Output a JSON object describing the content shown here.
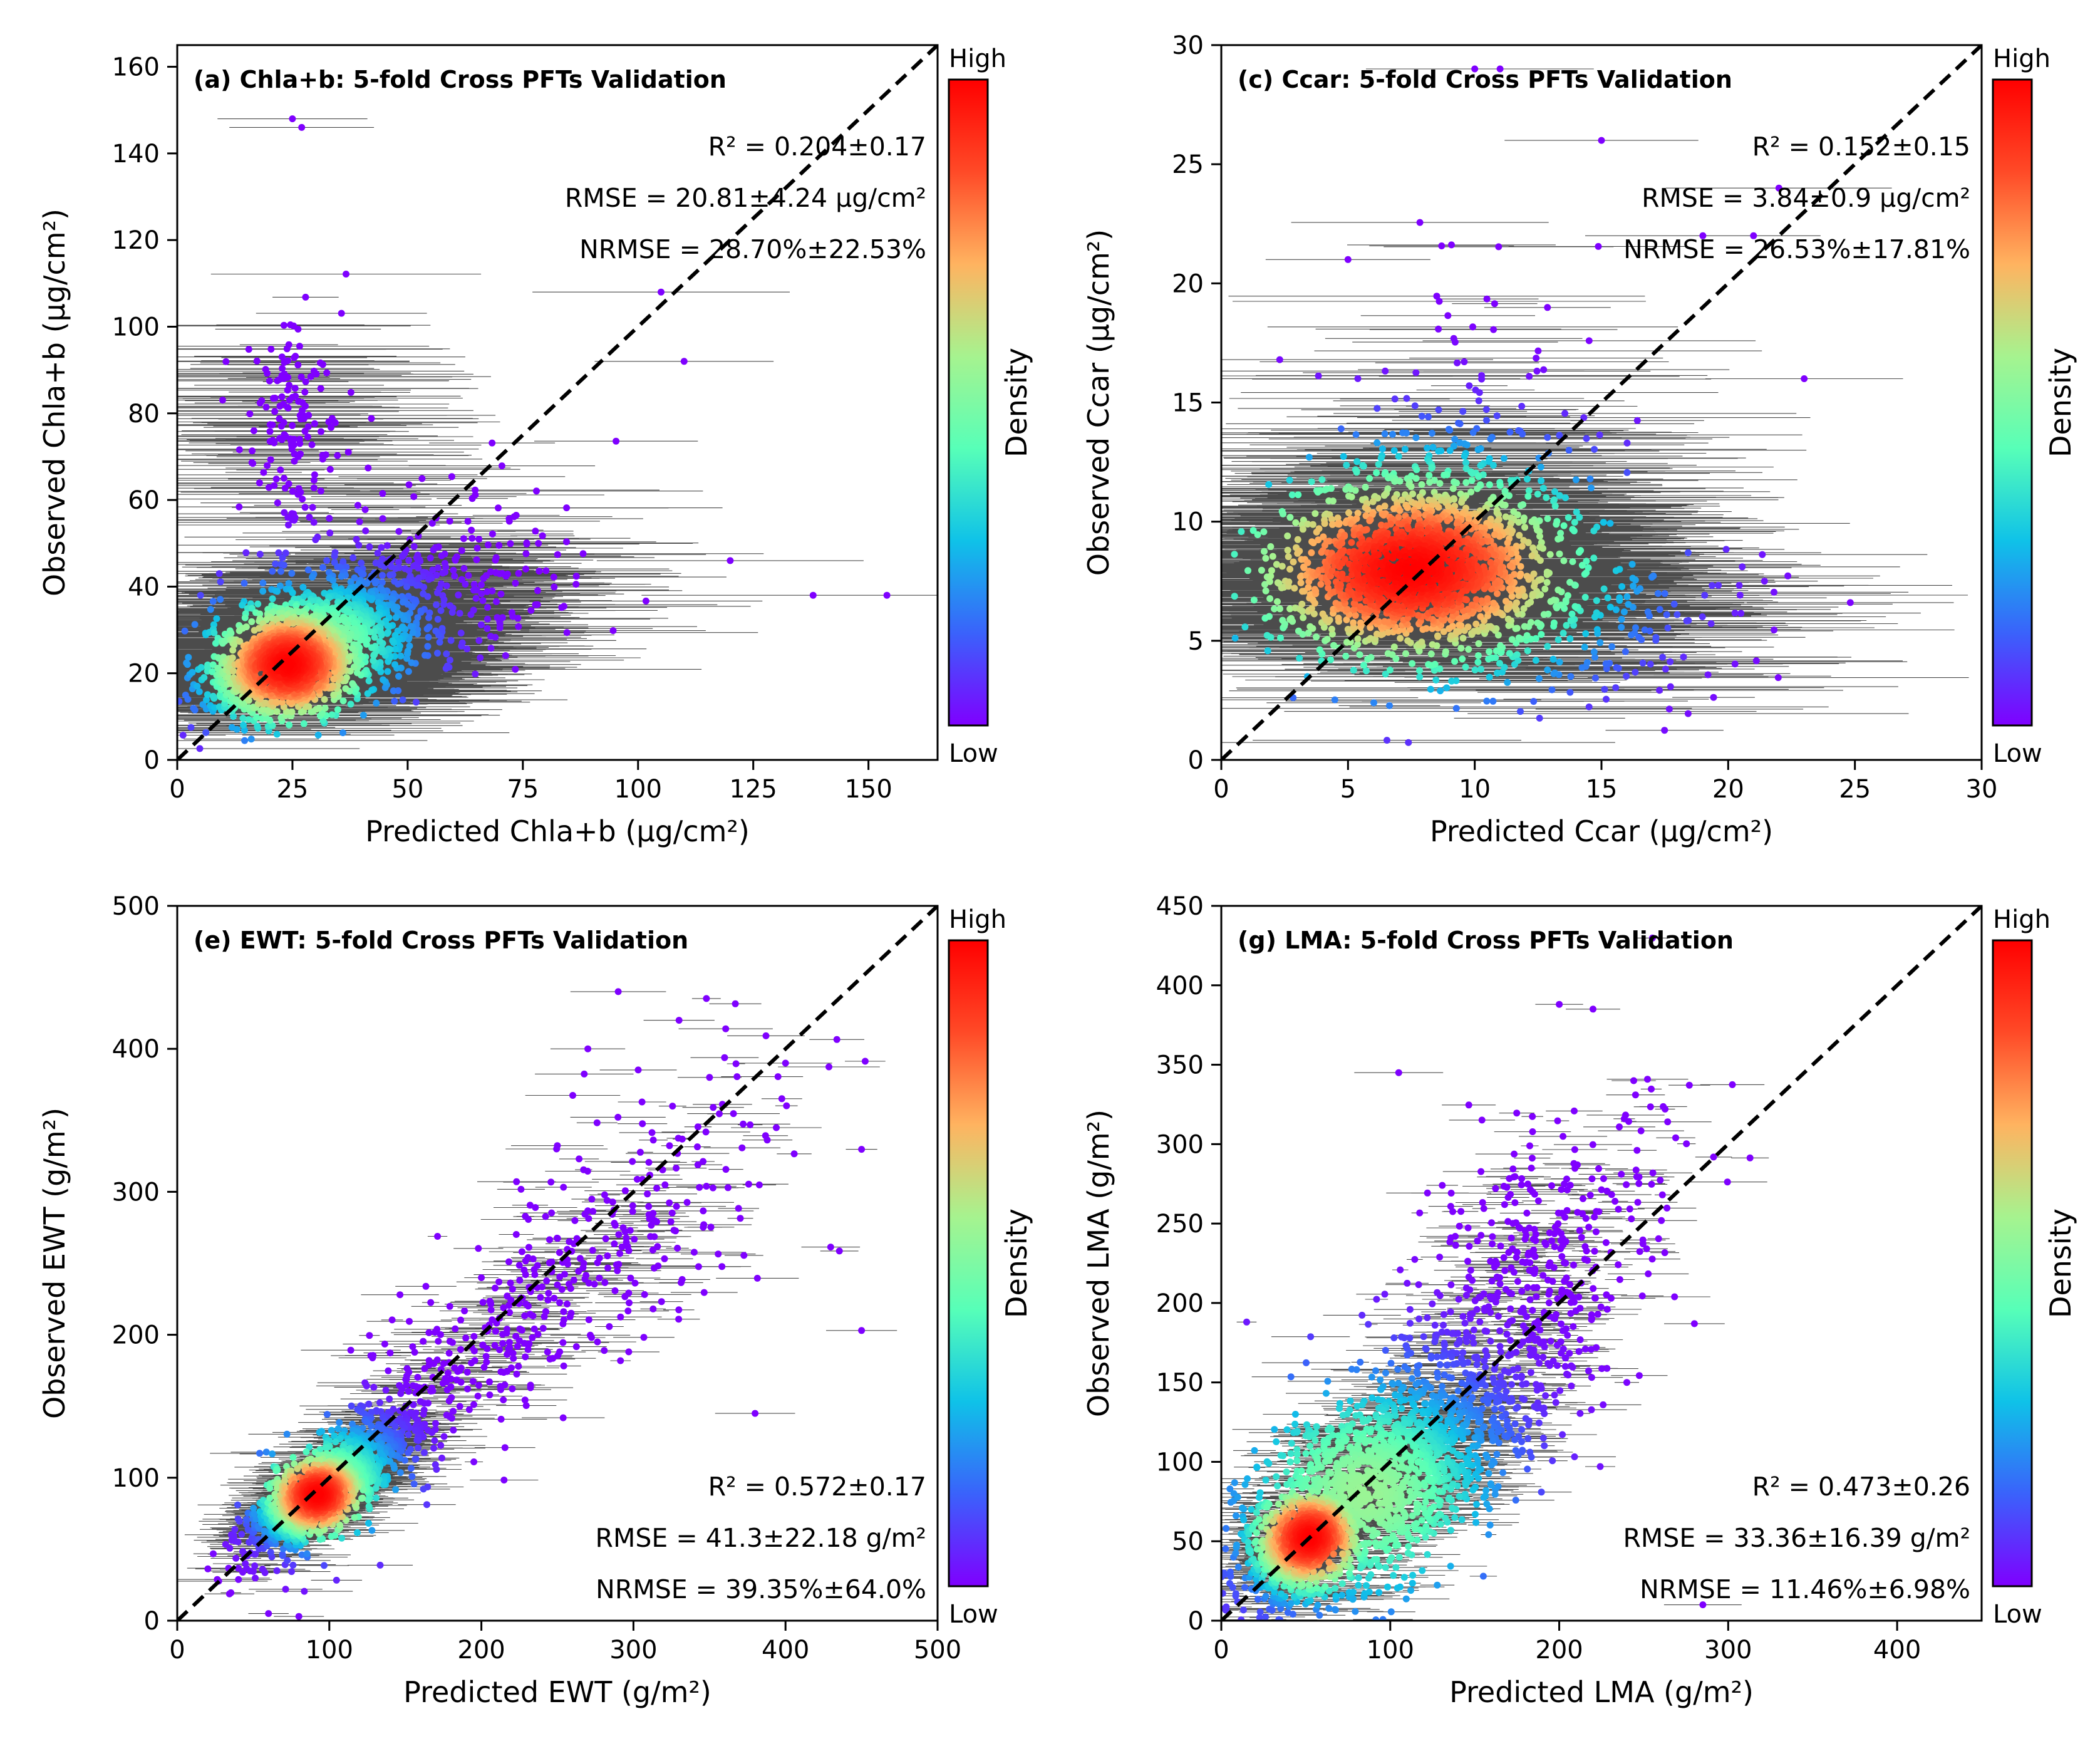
{
  "chart_data": [
    {
      "type": "scatter",
      "title": "(a) Chla+b: 5-fold Cross PFTs Validation",
      "xlabel": "Predicted Chla+b (μg/cm²)",
      "ylabel": "Observed Chla+b (μg/cm²)",
      "xlim": [
        0,
        165
      ],
      "ylim": [
        0,
        165
      ],
      "xticks": [
        0,
        25,
        50,
        75,
        100,
        125,
        150
      ],
      "yticks": [
        0,
        20,
        40,
        60,
        80,
        100,
        120,
        140,
        160
      ],
      "stats": [
        "R² = 0.204±0.17",
        "RMSE = 20.81±4.24 μg/cm²",
        "NRMSE = 28.70%±22.53%"
      ],
      "stats_position": "top-right",
      "one_to_one_line": true,
      "colorbar": {
        "label": "Density",
        "high": "High",
        "low": "Low"
      },
      "density_center": [
        24,
        22
      ],
      "cloud": [
        {
          "cx": 30,
          "cy": 27,
          "sx": 13,
          "sy": 9,
          "rho": 0.55,
          "n": 1300
        },
        {
          "cx": 24,
          "cy": 22,
          "sx": 6,
          "sy": 5,
          "rho": 0.3,
          "n": 700
        },
        {
          "cx": 25,
          "cy": 78,
          "sx": 5,
          "sy": 15,
          "rho": 0.0,
          "n": 160
        },
        {
          "cx": 55,
          "cy": 38,
          "sx": 20,
          "sy": 12,
          "rho": 0.3,
          "n": 250
        }
      ],
      "error_bar_half_width": 22,
      "outliers": [
        [
          25,
          148
        ],
        [
          27,
          146
        ],
        [
          138,
          38
        ],
        [
          120,
          46
        ],
        [
          110,
          92
        ],
        [
          154,
          38
        ],
        [
          105,
          108
        ]
      ]
    },
    {
      "type": "scatter",
      "title": "(c) Ccar: 5-fold Cross PFTs Validation",
      "xlabel": "Predicted Ccar (μg/cm²)",
      "ylabel": "Observed Ccar (μg/cm²)",
      "xlim": [
        0,
        30
      ],
      "ylim": [
        0,
        30
      ],
      "xticks": [
        0,
        5,
        10,
        15,
        20,
        25,
        30
      ],
      "yticks": [
        0,
        5,
        10,
        15,
        20,
        25,
        30
      ],
      "stats": [
        "R² = 0.152±0.15",
        "RMSE = 3.84±0.9 μg/cm²",
        "NRMSE = 26.53%±17.81%"
      ],
      "stats_position": "top-right",
      "one_to_one_line": true,
      "colorbar": {
        "label": "Density",
        "high": "High",
        "low": "Low"
      },
      "density_center": [
        7.5,
        8
      ],
      "cloud": [
        {
          "cx": 7.5,
          "cy": 7.8,
          "sx": 2.6,
          "sy": 1.6,
          "rho": 0.15,
          "n": 1500
        },
        {
          "cx": 8,
          "cy": 11,
          "sx": 2.5,
          "sy": 1.5,
          "rho": 0.0,
          "n": 250
        },
        {
          "cx": 13,
          "cy": 6,
          "sx": 4,
          "sy": 1.8,
          "rho": 0.0,
          "n": 300
        },
        {
          "cx": 10,
          "cy": 14,
          "sx": 3,
          "sy": 3,
          "rho": 0.0,
          "n": 90
        }
      ],
      "error_bar_half_width": 5,
      "outliers": [
        [
          10,
          29
        ],
        [
          11,
          29
        ],
        [
          22,
          24
        ],
        [
          15,
          26
        ],
        [
          5,
          21
        ],
        [
          23,
          16
        ],
        [
          21,
          22
        ],
        [
          19,
          22
        ]
      ]
    },
    {
      "type": "scatter",
      "title": "(e) EWT: 5-fold Cross PFTs Validation",
      "xlabel": "Predicted EWT (g/m²)",
      "ylabel": "Observed EWT (g/m²)",
      "xlim": [
        0,
        500
      ],
      "ylim": [
        0,
        500
      ],
      "xticks": [
        0,
        100,
        200,
        300,
        400,
        500
      ],
      "yticks": [
        0,
        100,
        200,
        300,
        400,
        500
      ],
      "stats": [
        "R² = 0.572±0.17",
        "RMSE = 41.3±22.18 g/m²",
        "NRMSE = 39.35%±64.0%"
      ],
      "stats_position": "bottom-right",
      "one_to_one_line": true,
      "colorbar": {
        "label": "Density",
        "high": "High",
        "low": "Low"
      },
      "density_center": [
        92,
        88
      ],
      "cloud": [
        {
          "cx": 100,
          "cy": 95,
          "sx": 28,
          "sy": 26,
          "rho": 0.8,
          "n": 1200
        },
        {
          "cx": 90,
          "cy": 86,
          "sx": 12,
          "sy": 11,
          "rho": 0.7,
          "n": 500
        },
        {
          "cx": 200,
          "cy": 190,
          "sx": 60,
          "sy": 60,
          "rho": 0.8,
          "n": 350
        },
        {
          "cx": 310,
          "cy": 280,
          "sx": 55,
          "sy": 60,
          "rho": 0.6,
          "n": 160
        }
      ],
      "error_bar_half_width": 18,
      "outliers": [
        [
          450,
          203
        ],
        [
          380,
          145
        ],
        [
          270,
          400
        ],
        [
          330,
          420
        ],
        [
          400,
          390
        ],
        [
          290,
          440
        ],
        [
          60,
          5
        ],
        [
          80,
          3
        ]
      ]
    },
    {
      "type": "scatter",
      "title": "(g) LMA: 5-fold Cross PFTs Validation",
      "xlabel": "Predicted LMA (g/m²)",
      "ylabel": "Observed LMA (g/m²)",
      "xlim": [
        0,
        450
      ],
      "ylim": [
        0,
        450
      ],
      "xticks": [
        0,
        100,
        200,
        300,
        400
      ],
      "yticks": [
        0,
        50,
        100,
        150,
        200,
        250,
        300,
        350,
        400,
        450
      ],
      "stats": [
        "R² = 0.473±0.26",
        "RMSE = 33.36±16.39 g/m²",
        "NRMSE = 11.46%±6.98%"
      ],
      "stats_position": "bottom-right",
      "one_to_one_line": true,
      "colorbar": {
        "label": "Density",
        "high": "High",
        "low": "Low"
      },
      "density_center": [
        52,
        52
      ],
      "cloud": [
        {
          "cx": 85,
          "cy": 80,
          "sx": 48,
          "sy": 45,
          "rho": 0.7,
          "n": 1900
        },
        {
          "cx": 52,
          "cy": 52,
          "sx": 12,
          "sy": 12,
          "rho": 0.6,
          "n": 600
        },
        {
          "cx": 170,
          "cy": 200,
          "sx": 45,
          "sy": 60,
          "rho": 0.6,
          "n": 500
        }
      ],
      "error_bar_half_width": 14,
      "outliers": [
        [
          200,
          388
        ],
        [
          220,
          385
        ],
        [
          105,
          345
        ],
        [
          240,
          150
        ],
        [
          280,
          187
        ],
        [
          285,
          10
        ],
        [
          15,
          188
        ]
      ]
    }
  ],
  "colors": {
    "axis": "#000000",
    "error_bar": "#000000",
    "one_to_one": "#000000",
    "colormap": [
      "#7f00ff",
      "#3a62fb",
      "#0fc2e8",
      "#57ffb8",
      "#a6f38f",
      "#ffb360",
      "#ff4a27",
      "#ff0000"
    ]
  }
}
